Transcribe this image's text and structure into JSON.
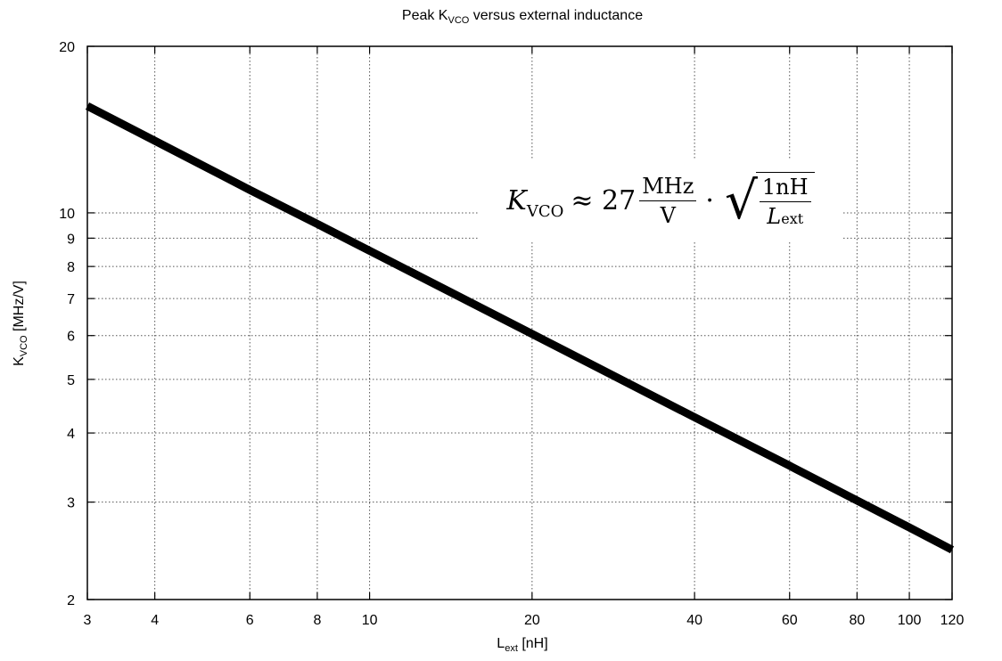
{
  "chart_data": {
    "type": "line",
    "title_main": "Peak K",
    "title_sub": "VCO",
    "title_rest": " versus external inductance",
    "ylabel_main": "K",
    "ylabel_sub": "VCO",
    "ylabel_rest": " [MHz/V]",
    "xlabel_main": "L",
    "xlabel_sub": "ext",
    "xlabel_rest": " [nH]",
    "x_scale": "log",
    "y_scale": "log",
    "xlim": [
      3,
      120
    ],
    "ylim": [
      2,
      20
    ],
    "x_ticks": [
      3,
      4,
      6,
      8,
      10,
      20,
      40,
      60,
      80,
      100,
      120
    ],
    "x_tick_labels": [
      "3",
      "4",
      "6",
      "8",
      "10",
      "20",
      "40",
      "60",
      "80",
      "100",
      "120"
    ],
    "y_ticks": [
      2,
      3,
      4,
      5,
      6,
      7,
      8,
      9,
      10,
      20
    ],
    "y_tick_labels": [
      "2",
      "3",
      "4",
      "5",
      "6",
      "7",
      "8",
      "9",
      "10",
      "20"
    ],
    "grid": true,
    "series": [
      {
        "x": [
          3,
          4,
          6,
          8,
          10,
          20,
          40,
          60,
          80,
          100,
          120
        ],
        "y": [
          15.6,
          13.5,
          11.0,
          9.55,
          8.54,
          6.04,
          4.27,
          3.49,
          3.02,
          2.7,
          2.46
        ]
      }
    ],
    "annotation": {
      "lhs": "K",
      "lhs_sub": "VCO",
      "approx": "≈ 27",
      "frac1_num": "MHz",
      "frac1_den": "V",
      "dot": "·",
      "frac2_num": "1nH",
      "frac2_den": "L",
      "frac2_den_sub": "ext"
    },
    "line_color": "#000000",
    "grid_color": "#555555"
  }
}
